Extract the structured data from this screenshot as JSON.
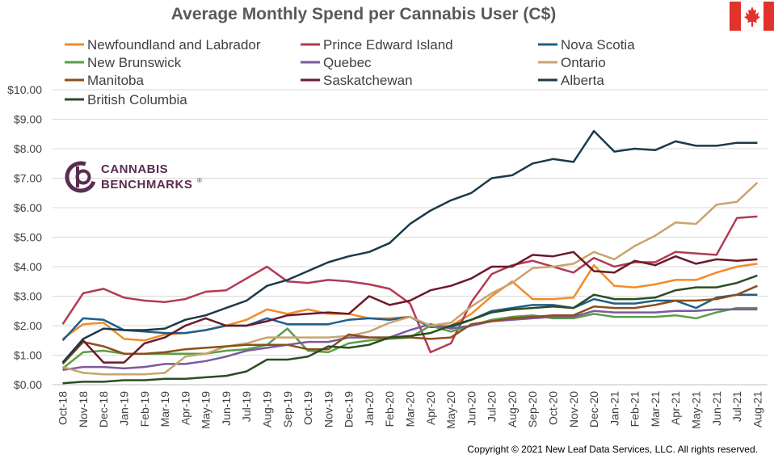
{
  "title": "Average Monthly Spend per Cannabis User (C$)",
  "copyright": "Copyright  © 2021 New Leaf Data Services, LLC. All rights reserved.",
  "logo": {
    "line1": "CANNABIS",
    "line2": "BENCHMARKS",
    "mark": "®",
    "color": "#5a2d50",
    "icon": "cannabis-benchmarks-logo-icon"
  },
  "flag": {
    "icon": "canada-flag-icon",
    "color": "#e1322b"
  },
  "chart_data": {
    "type": "line",
    "title": "Average Monthly Spend per Cannabis User (C$)",
    "xlabel": "",
    "ylabel": "",
    "ylim": [
      0,
      10
    ],
    "yticks": [
      "$0.00",
      "$1.00",
      "$2.00",
      "$3.00",
      "$4.00",
      "$5.00",
      "$6.00",
      "$7.00",
      "$8.00",
      "$9.00",
      "$10.00"
    ],
    "grid": true,
    "legend": "top",
    "categories": [
      "Oct-18",
      "Nov-18",
      "Dec-18",
      "Jan-19",
      "Feb-19",
      "Mar-19",
      "Apr-19",
      "May-19",
      "Jun-19",
      "Jul-19",
      "Aug-19",
      "Sep-19",
      "Oct-19",
      "Nov-19",
      "Dec-19",
      "Jan-20",
      "Feb-20",
      "Mar-20",
      "Apr-20",
      "May-20",
      "Jun-20",
      "Jul-20",
      "Aug-20",
      "Sep-20",
      "Oct-20",
      "Nov-20",
      "Dec-20",
      "Jan-21",
      "Feb-21",
      "Mar-21",
      "Apr-21",
      "May-21",
      "Jun-21",
      "Jul-21",
      "Aug-21"
    ],
    "series": [
      {
        "name": "Newfoundland and Labrador",
        "color": "#f28c28",
        "values": [
          1.55,
          2.05,
          2.1,
          1.55,
          1.5,
          1.7,
          1.75,
          1.85,
          2.0,
          2.2,
          2.55,
          2.4,
          2.55,
          2.4,
          2.4,
          2.25,
          2.25,
          2.3,
          2.0,
          2.0,
          2.4,
          3.0,
          3.5,
          2.9,
          2.9,
          2.95,
          4.05,
          3.35,
          3.3,
          3.4,
          3.55,
          3.55,
          3.8,
          4.0,
          4.1
        ]
      },
      {
        "name": "Prince Edward Island",
        "color": "#b23a55",
        "values": [
          2.05,
          3.1,
          3.25,
          2.95,
          2.85,
          2.8,
          2.9,
          3.15,
          3.2,
          3.6,
          4.0,
          3.5,
          3.45,
          3.55,
          3.5,
          3.4,
          3.25,
          2.75,
          1.1,
          1.4,
          2.8,
          3.75,
          4.05,
          4.2,
          4.0,
          3.8,
          4.3,
          4.0,
          4.15,
          4.15,
          4.5,
          4.45,
          4.4,
          5.65,
          5.7
        ]
      },
      {
        "name": "Nova Scotia",
        "color": "#1f5f8b",
        "values": [
          1.5,
          2.25,
          2.2,
          1.85,
          1.8,
          1.75,
          1.75,
          1.85,
          2.0,
          2.0,
          2.25,
          2.05,
          2.05,
          2.05,
          2.2,
          2.25,
          2.2,
          2.3,
          1.95,
          1.95,
          2.2,
          2.5,
          2.6,
          2.7,
          2.7,
          2.6,
          2.9,
          2.75,
          2.75,
          2.85,
          2.85,
          2.6,
          2.95,
          3.05,
          3.05
        ]
      },
      {
        "name": "New Brunswick",
        "color": "#5a9e4a",
        "values": [
          0.55,
          1.1,
          1.15,
          1.05,
          1.05,
          1.05,
          1.05,
          1.05,
          1.15,
          1.2,
          1.35,
          1.9,
          1.15,
          1.1,
          1.4,
          1.5,
          1.55,
          1.6,
          2.0,
          1.8,
          2.0,
          2.2,
          2.3,
          2.35,
          2.25,
          2.25,
          2.4,
          2.3,
          2.3,
          2.3,
          2.35,
          2.25,
          2.45,
          2.6,
          2.6
        ]
      },
      {
        "name": "Quebec",
        "color": "#7b5a9e",
        "values": [
          0.5,
          0.6,
          0.6,
          0.55,
          0.6,
          0.7,
          0.7,
          0.8,
          0.95,
          1.15,
          1.25,
          1.35,
          1.45,
          1.45,
          1.6,
          1.6,
          1.6,
          1.85,
          2.05,
          1.9,
          2.0,
          2.15,
          2.2,
          2.25,
          2.3,
          2.3,
          2.5,
          2.45,
          2.45,
          2.45,
          2.5,
          2.5,
          2.55,
          2.55,
          2.55
        ]
      },
      {
        "name": "Ontario",
        "color": "#c9a46e",
        "values": [
          0.6,
          0.4,
          0.35,
          0.35,
          0.35,
          0.4,
          0.95,
          1.05,
          1.3,
          1.4,
          1.6,
          1.6,
          1.6,
          1.6,
          1.65,
          1.8,
          2.1,
          2.3,
          2.0,
          2.1,
          2.65,
          3.1,
          3.45,
          3.95,
          4.0,
          4.1,
          4.5,
          4.25,
          4.7,
          5.05,
          5.5,
          5.45,
          6.1,
          6.2,
          6.85
        ]
      },
      {
        "name": "Manitoba",
        "color": "#8b4f1a",
        "values": [
          0.7,
          1.45,
          1.3,
          1.05,
          1.05,
          1.1,
          1.2,
          1.25,
          1.3,
          1.35,
          1.35,
          1.35,
          1.2,
          1.2,
          1.7,
          1.6,
          1.6,
          1.6,
          1.55,
          1.6,
          2.05,
          2.15,
          2.25,
          2.3,
          2.35,
          2.35,
          2.65,
          2.6,
          2.6,
          2.7,
          2.85,
          2.85,
          2.9,
          3.05,
          3.35
        ]
      },
      {
        "name": "Saskatchewan",
        "color": "#6b1a2a",
        "values": [
          0.75,
          1.5,
          0.75,
          0.75,
          1.4,
          1.6,
          2.0,
          2.25,
          2.0,
          2.0,
          2.15,
          2.35,
          2.4,
          2.45,
          2.4,
          3.0,
          2.7,
          2.85,
          3.2,
          3.35,
          3.6,
          4.0,
          4.0,
          4.4,
          4.35,
          4.5,
          3.85,
          3.8,
          4.2,
          4.05,
          4.35,
          4.1,
          4.25,
          4.2,
          4.25
        ]
      },
      {
        "name": "Alberta",
        "color": "#1b3a4b",
        "values": [
          0.75,
          1.55,
          1.9,
          1.85,
          1.85,
          1.9,
          2.2,
          2.35,
          2.6,
          2.85,
          3.35,
          3.55,
          3.85,
          4.15,
          4.35,
          4.5,
          4.8,
          5.45,
          5.9,
          6.25,
          6.5,
          7.0,
          7.1,
          7.5,
          7.65,
          7.55,
          8.6,
          7.9,
          8.0,
          7.95,
          8.25,
          8.1,
          8.1,
          8.2,
          8.2
        ]
      },
      {
        "name": "British Columbia",
        "color": "#2b4d23",
        "values": [
          0.05,
          0.1,
          0.1,
          0.15,
          0.15,
          0.2,
          0.2,
          0.25,
          0.3,
          0.45,
          0.85,
          0.85,
          0.95,
          1.3,
          1.25,
          1.35,
          1.6,
          1.65,
          1.75,
          2.0,
          2.2,
          2.45,
          2.55,
          2.6,
          2.65,
          2.6,
          3.05,
          2.9,
          2.9,
          2.95,
          3.2,
          3.3,
          3.3,
          3.45,
          3.7
        ]
      }
    ]
  }
}
